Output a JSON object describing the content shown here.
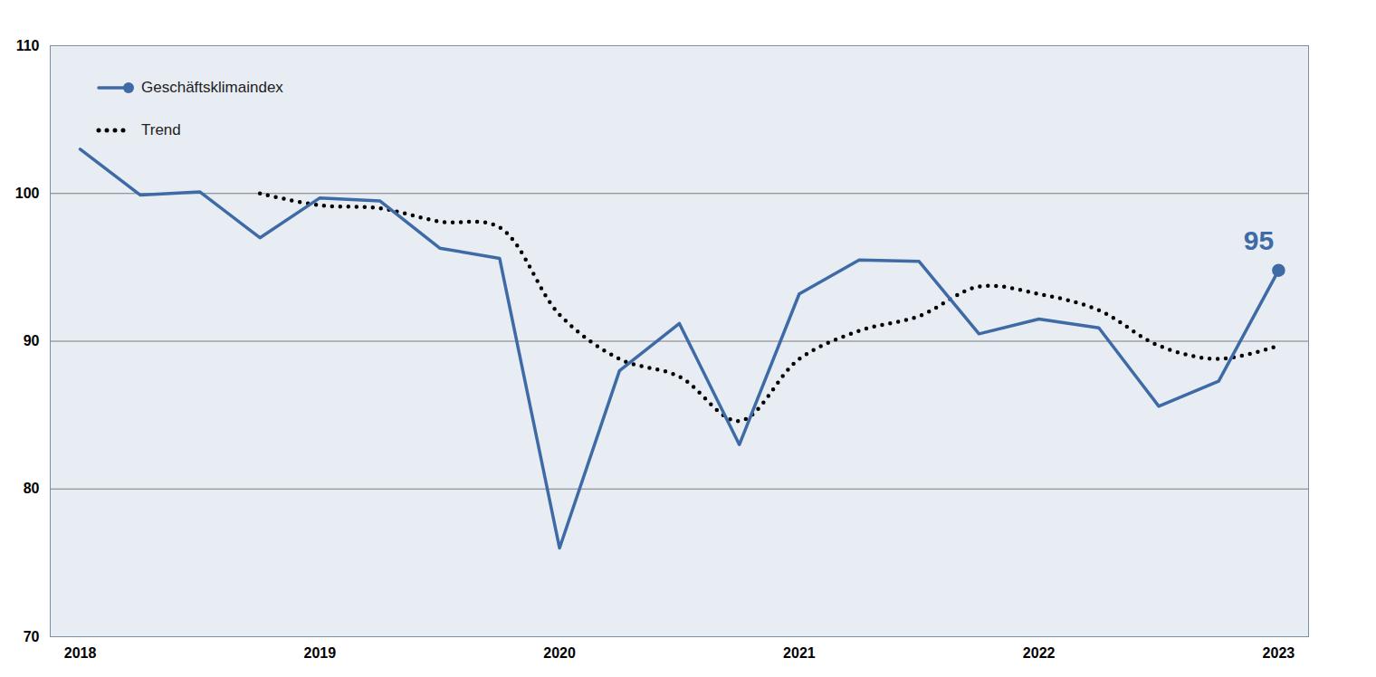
{
  "chart_data": {
    "type": "line",
    "x": [
      2018,
      2018.25,
      2018.5,
      2018.75,
      2019,
      2019.25,
      2019.5,
      2019.75,
      2020,
      2020.25,
      2020.5,
      2020.75,
      2021,
      2021.25,
      2021.5,
      2021.75,
      2022,
      2022.25,
      2022.5,
      2022.75,
      2023
    ],
    "series": [
      {
        "name": "Geschäftsklimaindex",
        "color": "#3e6aa6",
        "line_style": "solid",
        "marker": "end",
        "values": [
          103,
          99.9,
          100.1,
          97,
          99.7,
          99.5,
          96.3,
          95.6,
          76,
          88,
          91.2,
          83,
          93.2,
          95.5,
          95.4,
          90.5,
          91.5,
          90.9,
          85.6,
          87.3,
          94.8
        ]
      },
      {
        "name": "Trend",
        "color": "#000000",
        "line_style": "dotted",
        "values": [
          null,
          null,
          null,
          100,
          99.2,
          99,
          98.1,
          97.7,
          91.8,
          88.8,
          87.6,
          84.6,
          88.8,
          90.7,
          91.7,
          93.7,
          93.2,
          92.1,
          89.7,
          88.8,
          89.7
        ]
      }
    ],
    "xlim": [
      2017.875,
      2023.125
    ],
    "xticks": [
      2018,
      2019,
      2020,
      2021,
      2022,
      2023
    ],
    "ylim": [
      70,
      110
    ],
    "yticks": [
      70,
      80,
      90,
      100,
      110
    ],
    "grid": true,
    "legend": "top-left",
    "annotations": [
      {
        "text": "95",
        "x": 2023
      }
    ]
  }
}
